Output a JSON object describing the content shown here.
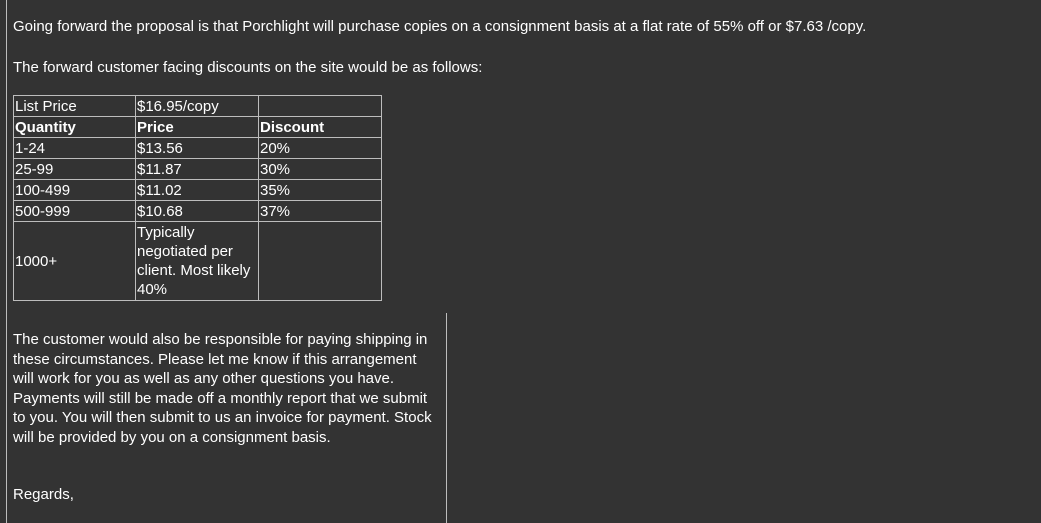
{
  "email": {
    "intro": "Going forward the proposal is that Porchlight will purchase copies on a consignment basis at a flat rate of 55% off or $7.63 /copy.",
    "table_intro": "The forward customer facing discounts on the site would be as follows:",
    "table": {
      "list_price_label": "List Price",
      "list_price_value": "$16.95/copy",
      "headers": [
        "Quantity",
        "Price",
        "Discount"
      ],
      "rows": [
        [
          "1-24",
          "$13.56",
          "20%"
        ],
        [
          "25-99",
          "$11.87",
          "30%"
        ],
        [
          "100-499",
          "$11.02",
          "35%"
        ],
        [
          "500-999",
          "$10.68",
          "37%"
        ],
        [
          "1000+",
          "Typically negotiated per client. Most likely 40%",
          ""
        ]
      ]
    },
    "body": "The customer would also be responsible for paying shipping in these circumstances. Please let me know if this arrangement will work for you as well as any other questions you have. Payments will still be made off a monthly report that we submit to you. You will then submit to us an invoice for payment. Stock will be provided by you on a consignment basis.",
    "closing": "Regards,"
  }
}
